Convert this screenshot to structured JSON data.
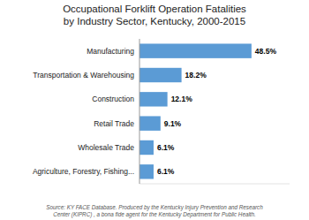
{
  "chart_data": {
    "type": "bar",
    "orientation": "horizontal",
    "title": "Occupational Forklift Operation Fatalities\nby Industry Sector, Kentucky, 2000-2015",
    "categories": [
      "Agriculture, Forestry, Fishing...",
      "Wholesale Trade",
      "Retail Trade",
      "Construction",
      "Transportation & Warehousing",
      "Manufacturing"
    ],
    "values": [
      6.1,
      6.1,
      9.1,
      12.1,
      18.2,
      48.5
    ],
    "value_labels": [
      "6.1%",
      "6.1%",
      "9.1%",
      "12.1%",
      "18.2%",
      "48.5%"
    ],
    "color": "#5B9BD5",
    "xlim": [
      0,
      65
    ],
    "data_labels": true,
    "tick_labels": "y",
    "annotations": [
      "Source: KY FACE Database. Produced by the Kentucky Injury Prevention and Research\nCenter (KIPRC) , a bona fide agent for the Kentucky Department for Public Health."
    ]
  }
}
